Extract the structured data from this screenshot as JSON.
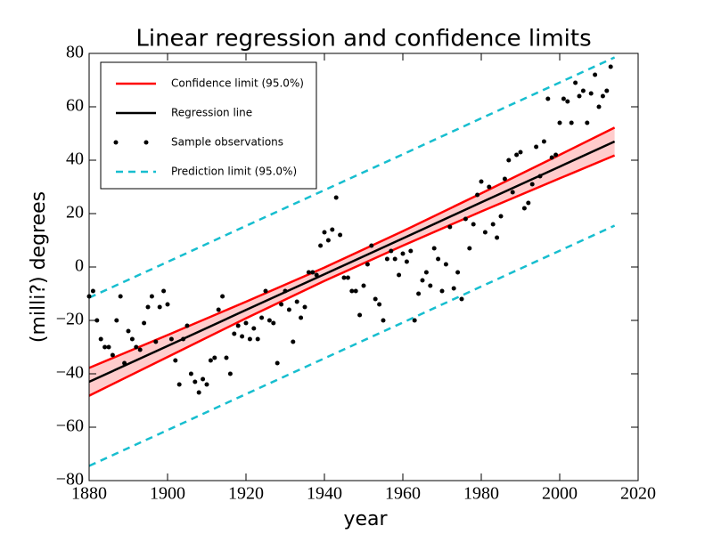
{
  "chart_data": {
    "type": "regression",
    "title": "Linear regression and confidence limits",
    "x_label": "year",
    "y_label": "(milli?) degrees",
    "xlim": [
      1880,
      2020
    ],
    "ylim": [
      -80,
      80
    ],
    "xticks": [
      1880,
      1900,
      1920,
      1940,
      1960,
      1980,
      2000,
      2020
    ],
    "yticks": [
      {
        "value": -80,
        "label": "−80"
      },
      {
        "value": -60,
        "label": "−60"
      },
      {
        "value": -40,
        "label": "−40"
      },
      {
        "value": -20,
        "label": "−20"
      },
      0,
      20,
      40,
      60,
      80
    ],
    "x_fit": [
      1880,
      1900,
      1920,
      1940,
      1960,
      1980,
      2000,
      2014
    ],
    "confidence": {
      "name": "Confidence limit (95.0%)",
      "color": "#ff0000",
      "fill": "#ffcccc",
      "upper": [
        -37.8,
        -25.5,
        -13.0,
        -0.2,
        13.4,
        27.6,
        42.0,
        52.2
      ],
      "lower": [
        -48.2,
        -33.7,
        -19.2,
        -5.2,
        8.0,
        20.8,
        33.2,
        41.8
      ]
    },
    "regression": {
      "name": "Regression line",
      "color": "#000000",
      "values": [
        -43,
        -29.6,
        -16.1,
        -2.7,
        10.7,
        24.2,
        37.6,
        47
      ]
    },
    "observations": {
      "name": "Sample observations",
      "color": "#000000",
      "x": [
        1880,
        1881,
        1882,
        1883,
        1884,
        1885,
        1886,
        1887,
        1888,
        1889,
        1890,
        1891,
        1892,
        1893,
        1894,
        1895,
        1896,
        1897,
        1898,
        1899,
        1900,
        1901,
        1902,
        1903,
        1904,
        1905,
        1906,
        1907,
        1908,
        1909,
        1910,
        1911,
        1912,
        1913,
        1914,
        1915,
        1916,
        1917,
        1918,
        1919,
        1920,
        1921,
        1922,
        1923,
        1924,
        1925,
        1926,
        1927,
        1928,
        1929,
        1930,
        1931,
        1932,
        1933,
        1934,
        1935,
        1936,
        1937,
        1938,
        1939,
        1940,
        1941,
        1942,
        1943,
        1944,
        1945,
        1946,
        1947,
        1948,
        1949,
        1950,
        1951,
        1952,
        1953,
        1954,
        1955,
        1956,
        1957,
        1958,
        1959,
        1960,
        1961,
        1962,
        1963,
        1964,
        1965,
        1966,
        1967,
        1968,
        1969,
        1970,
        1971,
        1972,
        1973,
        1974,
        1975,
        1976,
        1977,
        1978,
        1979,
        1980,
        1981,
        1982,
        1983,
        1984,
        1985,
        1986,
        1987,
        1988,
        1989,
        1990,
        1991,
        1992,
        1993,
        1994,
        1995,
        1996,
        1997,
        1998,
        1999,
        2000,
        2001,
        2002,
        2003,
        2004,
        2005,
        2006,
        2007,
        2008,
        2009,
        2010,
        2011,
        2012,
        2013
      ],
      "values": [
        -11,
        -9,
        -20,
        -27,
        -30,
        -30,
        -33,
        -20,
        -11,
        -36,
        -24,
        -27,
        -30,
        -31,
        -21,
        -15,
        -11,
        -28,
        -15,
        -9,
        -14,
        -27,
        -35,
        -44,
        -27,
        -22,
        -40,
        -43,
        -47,
        -42,
        -44,
        -35,
        -34,
        -16,
        -11,
        -34,
        -40,
        -25,
        -22,
        -26,
        -21,
        -27,
        -23,
        -27,
        -19,
        -9,
        -20,
        -21,
        -36,
        -14,
        -9,
        -16,
        -28,
        -13,
        -19,
        -15,
        -2,
        -2,
        -3,
        8,
        13,
        10,
        14,
        26,
        12,
        -4,
        -4,
        -9,
        -9,
        -18,
        -7,
        1,
        8,
        -12,
        -14,
        -20,
        3,
        6,
        3,
        -3,
        5,
        2,
        6,
        -20,
        -10,
        -5,
        -2,
        -7,
        7,
        3,
        -9,
        1,
        15,
        -8,
        -2,
        -12,
        18,
        7,
        16,
        27,
        32,
        13,
        30,
        16,
        11,
        19,
        33,
        40,
        28,
        42,
        43,
        22,
        24,
        31,
        45,
        34,
        47,
        63,
        41,
        42,
        54,
        63,
        62,
        54,
        69,
        64,
        66,
        54,
        65,
        72,
        60,
        64,
        66,
        75
      ]
    },
    "prediction": {
      "name": "Prediction limit (95.0%)",
      "color": "#17becf",
      "upper": [
        -11.5,
        1.9,
        15.4,
        28.8,
        42.2,
        55.7,
        69.1,
        78.5
      ],
      "lower": [
        -74.5,
        -61.1,
        -47.6,
        -34.2,
        -20.8,
        -7.3,
        6.1,
        15.5
      ]
    },
    "legend": "upper left"
  }
}
